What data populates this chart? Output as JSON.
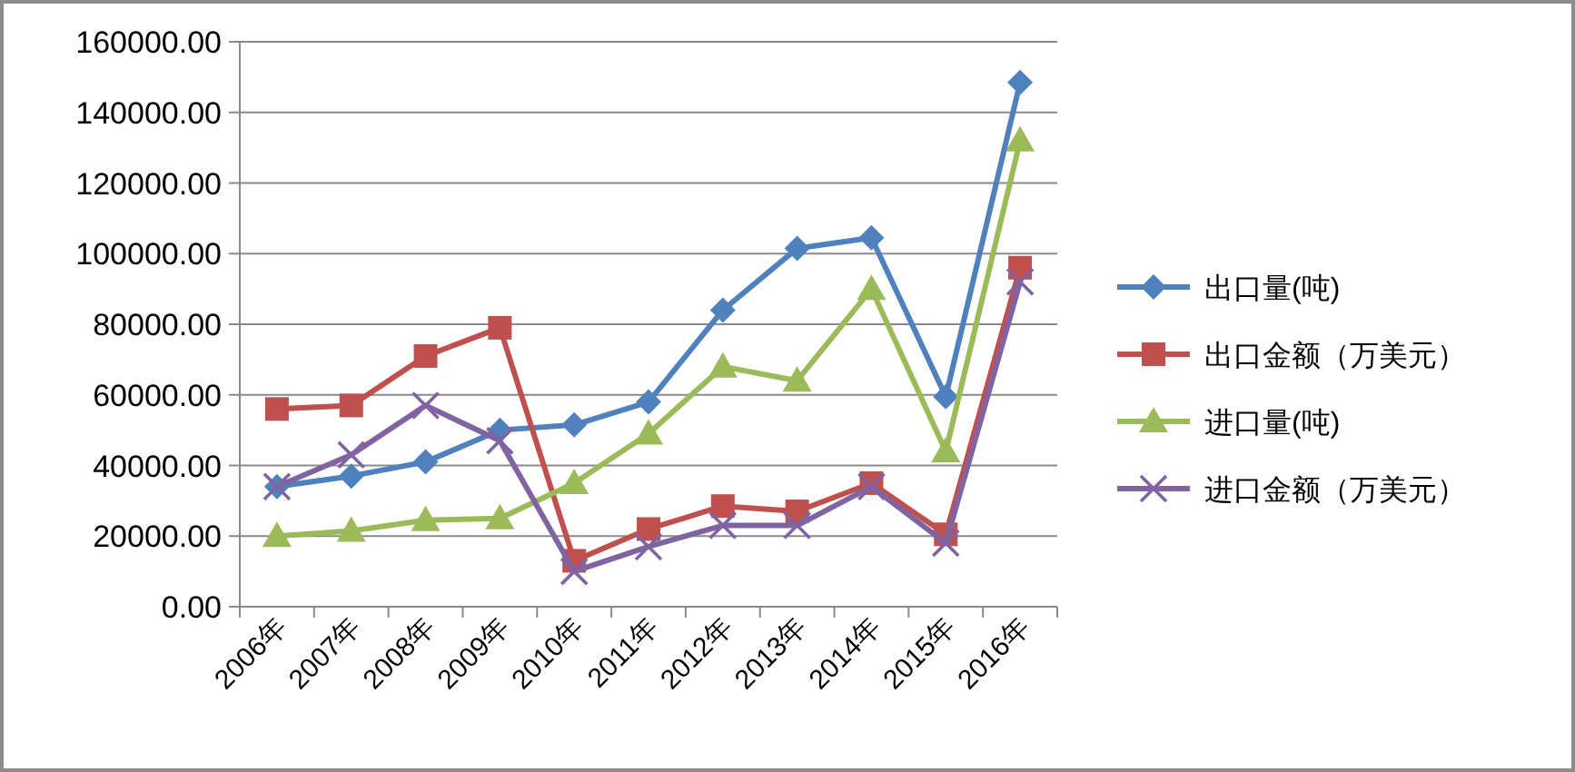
{
  "chart_data": {
    "type": "line",
    "categories": [
      "2006年",
      "2007年",
      "2008年",
      "2009年",
      "2010年",
      "2011年",
      "2012年",
      "2013年",
      "2014年",
      "2015年",
      "2016年"
    ],
    "series": [
      {
        "name": "出口量(吨)",
        "color": "#4f81bd",
        "marker": "diamond",
        "values": [
          34000,
          37000,
          41000,
          50000,
          51500,
          58000,
          84000,
          101500,
          104500,
          59500,
          148500
        ]
      },
      {
        "name": "出口金额（万美元）",
        "color": "#c0504d",
        "marker": "square",
        "values": [
          56000,
          57000,
          71000,
          79000,
          13000,
          22000,
          28500,
          27000,
          35000,
          20500,
          96000
        ]
      },
      {
        "name": "进口量(吨)",
        "color": "#9bbb59",
        "marker": "triangle",
        "values": [
          20000,
          21500,
          24500,
          25000,
          35000,
          49000,
          68000,
          64000,
          90000,
          44000,
          132000
        ]
      },
      {
        "name": "进口金额（万美元）",
        "color": "#8064a2",
        "marker": "cross",
        "values": [
          34000,
          43000,
          57000,
          47000,
          10000,
          17000,
          23000,
          23000,
          34000,
          18000,
          92000
        ]
      }
    ],
    "ylim": [
      0,
      160000
    ],
    "yticks": [
      {
        "value": 0,
        "label": "0.00"
      },
      {
        "value": 20000,
        "label": "20000.00"
      },
      {
        "value": 40000,
        "label": "40000.00"
      },
      {
        "value": 60000,
        "label": "60000.00"
      },
      {
        "value": 80000,
        "label": "80000.00"
      },
      {
        "value": 100000,
        "label": "100000.00"
      },
      {
        "value": 120000,
        "label": "120000.00"
      },
      {
        "value": 140000,
        "label": "140000.00"
      },
      {
        "value": 160000,
        "label": "160000.00"
      }
    ],
    "grid": "y",
    "legend": "right",
    "line_style": "solid"
  }
}
